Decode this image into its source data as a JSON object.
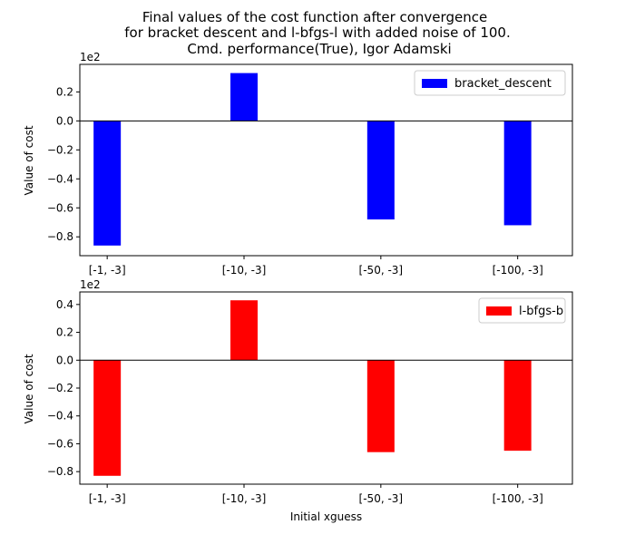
{
  "figure": {
    "title_lines": [
      "Final values of the cost function after convergence",
      "for bracket descent and l-bfgs-l with added noise of 100.",
      "Cmd. performance(True), Igor Adamski"
    ]
  },
  "chart_data": [
    {
      "type": "bar",
      "categories": [
        "[-1, -3]",
        "[-10, -3]",
        "[-50, -3]",
        "[-100, -3]"
      ],
      "series": [
        {
          "name": "bracket_descent",
          "values": [
            -86,
            33,
            -68,
            -72
          ],
          "color": "#0000ff"
        }
      ],
      "title": "",
      "xlabel": "",
      "ylabel": "Value of cost",
      "scale_label": "1e2",
      "ylim": [
        -93,
        39
      ],
      "yticks": [
        -0.8,
        -0.6,
        -0.4,
        -0.2,
        0.0,
        0.2
      ],
      "ytick_labels": [
        "−0.8",
        "−0.6",
        "−0.4",
        "−0.2",
        "0.0",
        "0.2"
      ],
      "zero_line": true,
      "grid": false,
      "legend": "top-right"
    },
    {
      "type": "bar",
      "categories": [
        "[-1, -3]",
        "[-10, -3]",
        "[-50, -3]",
        "[-100, -3]"
      ],
      "series": [
        {
          "name": "l-bfgs-b",
          "values": [
            -83,
            43,
            -66,
            -65
          ],
          "color": "#ff0000"
        }
      ],
      "title": "",
      "xlabel": "Initial xguess",
      "ylabel": "Value of cost",
      "scale_label": "1e2",
      "ylim": [
        -89,
        49
      ],
      "yticks": [
        -0.8,
        -0.6,
        -0.4,
        -0.2,
        0.0,
        0.2,
        0.4
      ],
      "ytick_labels": [
        "−0.8",
        "−0.6",
        "−0.4",
        "−0.2",
        "0.0",
        "0.2",
        "0.4"
      ],
      "zero_line": true,
      "grid": false,
      "legend": "top-right"
    }
  ]
}
